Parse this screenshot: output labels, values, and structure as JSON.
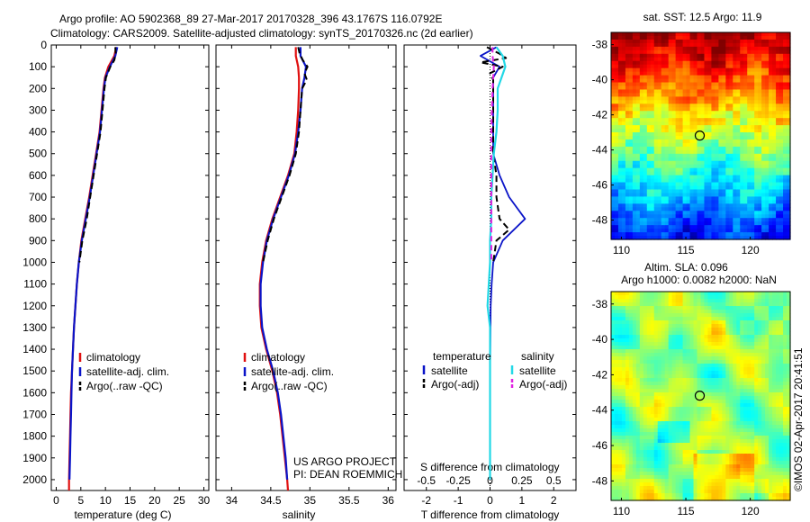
{
  "header": {
    "line1": "Argo profile: AO 5902368_89 27-Mar-2017 20170328_396 43.1767S 116.0792E",
    "line2": "Climatology: CARS2009. Satellite-adjusted climatology: synTS_20170326.nc (2d earlier)"
  },
  "colors": {
    "climatology": "#e01010",
    "satellite": "#0a14c8",
    "argo": "#000000",
    "salinity_satellite": "#22d8e6",
    "salinity_argo": "#e020e0"
  },
  "chart_data": [
    {
      "type": "line",
      "xlabel": "temperature (deg C)",
      "ylabel": "",
      "ylim": [
        2050,
        0
      ],
      "xlim": [
        -1,
        31
      ],
      "xticks": [
        0,
        5,
        10,
        15,
        20,
        25,
        30
      ],
      "yticks": [
        0,
        100,
        200,
        300,
        400,
        500,
        600,
        700,
        800,
        900,
        1000,
        1100,
        1200,
        1300,
        1400,
        1500,
        1600,
        1700,
        1800,
        1900,
        2000
      ],
      "legend": [
        "climatology",
        "satellite-adj. clim.",
        "Argo(..raw -QC)"
      ],
      "legend_position": "lower-right",
      "series": [
        {
          "name": "climatology",
          "y": [
            10,
            50,
            100,
            150,
            200,
            300,
            400,
            500,
            600,
            700,
            800,
            900,
            1000,
            1100,
            1200,
            1300,
            1400,
            1500,
            1600,
            1700,
            1800,
            1900,
            2000,
            2050
          ],
          "x": [
            12.2,
            11.8,
            10.6,
            9.9,
            9.6,
            9.2,
            8.8,
            8.1,
            7.4,
            6.7,
            5.9,
            5.1,
            4.6,
            4.2,
            3.9,
            3.6,
            3.4,
            3.2,
            3.0,
            2.9,
            2.8,
            2.7,
            2.6,
            2.6
          ]
        },
        {
          "name": "satellite-adj. clim.",
          "y": [
            10,
            50,
            100,
            150,
            200,
            300,
            400,
            500,
            600,
            700,
            800,
            900,
            1000,
            1100,
            1200,
            1300,
            1400,
            1500,
            1600,
            1700,
            1800,
            1900,
            2000
          ],
          "x": [
            12.4,
            12.0,
            10.9,
            10.0,
            9.7,
            9.3,
            8.9,
            8.2,
            7.5,
            6.8,
            6.0,
            5.2,
            4.6,
            4.2,
            3.9,
            3.6,
            3.4,
            3.2,
            3.1,
            3.0,
            2.9,
            2.8,
            2.7
          ]
        },
        {
          "name": "Argo(..raw -QC)",
          "y": [
            10,
            40,
            70,
            100,
            150,
            200,
            300,
            400,
            500,
            600,
            700,
            800,
            900,
            1000
          ],
          "x": [
            12.0,
            12.1,
            11.8,
            11.0,
            10.1,
            9.8,
            9.4,
            9.0,
            8.3,
            7.6,
            6.9,
            6.2,
            5.3,
            4.7
          ]
        }
      ]
    },
    {
      "type": "line",
      "xlabel": "salinity",
      "ylabel": "",
      "ylim": [
        2050,
        0
      ],
      "xlim": [
        33.8,
        36.1
      ],
      "xticks": [
        34,
        34.5,
        35,
        35.5,
        36
      ],
      "xticklabels": [
        "34",
        "34.5",
        "35",
        "35.5",
        "36"
      ],
      "legend": [
        "climatology",
        "satellite-adj. clim.",
        "Argo(..raw -QC)"
      ],
      "legend_position": "lower-right",
      "annotation": [
        "US ARGO PROJECT",
        "PI: DEAN ROEMMICH"
      ],
      "series": [
        {
          "name": "climatology",
          "y": [
            10,
            50,
            100,
            150,
            200,
            300,
            400,
            500,
            600,
            700,
            800,
            900,
            1000,
            1100,
            1200,
            1300,
            1400,
            1500,
            1600,
            1700,
            1800,
            1900,
            2000,
            2050
          ],
          "x": [
            34.82,
            34.82,
            34.85,
            34.86,
            34.86,
            34.85,
            34.83,
            34.8,
            34.72,
            34.62,
            34.52,
            34.44,
            34.39,
            34.36,
            34.36,
            34.38,
            34.44,
            34.52,
            34.58,
            34.62,
            34.65,
            34.68,
            34.71,
            34.72
          ]
        },
        {
          "name": "satellite-adj. clim.",
          "y": [
            10,
            50,
            100,
            150,
            200,
            300,
            400,
            500,
            600,
            700,
            800,
            900,
            1000,
            1100,
            1200,
            1300,
            1400,
            1500,
            1600,
            1700,
            1800,
            1900,
            2000
          ],
          "x": [
            34.88,
            34.88,
            34.95,
            34.93,
            34.9,
            34.88,
            34.85,
            34.81,
            34.73,
            34.63,
            34.53,
            34.45,
            34.4,
            34.37,
            34.37,
            34.39,
            34.45,
            34.53,
            34.59,
            34.63,
            34.66,
            34.69,
            34.71
          ]
        },
        {
          "name": "Argo(..raw -QC)",
          "y": [
            10,
            40,
            70,
            100,
            130,
            160,
            200,
            300,
            400,
            500,
            600,
            700,
            800,
            900,
            1000
          ],
          "x": [
            34.85,
            34.87,
            34.91,
            34.97,
            34.93,
            34.96,
            34.9,
            34.88,
            34.86,
            34.82,
            34.74,
            34.64,
            34.54,
            34.46,
            34.4
          ]
        }
      ]
    },
    {
      "type": "line",
      "title": "",
      "xlabel": "T difference from climatology",
      "secondary_xlabel": "S difference from climatology",
      "ylim": [
        2050,
        0
      ],
      "xlim": [
        -2.7,
        2.7
      ],
      "xticks": [
        -2,
        -1,
        0,
        1,
        2
      ],
      "secondary_xticks": [
        -0.5,
        -0.25,
        0,
        0.25,
        0.5
      ],
      "legend_groups": [
        {
          "title": "temperature",
          "entries": [
            "satellite",
            "Argo(-adj)"
          ]
        },
        {
          "title": "salinity",
          "entries": [
            "satellite",
            "Argo(-adj)"
          ]
        }
      ],
      "legend_position": "lower-center",
      "series": [
        {
          "name": "temperature satellite",
          "y": [
            10,
            50,
            100,
            150,
            200,
            300,
            400,
            500,
            600,
            700,
            800,
            900,
            1000,
            1100,
            1200,
            1500,
            2000
          ],
          "x": [
            0.2,
            -0.3,
            0.3,
            0.1,
            0.1,
            0.1,
            0.1,
            0.1,
            0.3,
            0.6,
            1.1,
            0.4,
            0.1,
            0.05,
            0.02,
            0.0,
            0.0
          ]
        },
        {
          "name": "temperature Argo(-adj)",
          "y": [
            10,
            40,
            60,
            80,
            100,
            130,
            160,
            200,
            300,
            400,
            500,
            600,
            700,
            800,
            850,
            900,
            1000
          ],
          "x": [
            -0.1,
            0.3,
            0.5,
            -0.3,
            0.4,
            0.0,
            0.1,
            0.1,
            0.1,
            0.1,
            0.1,
            0.2,
            0.2,
            0.3,
            0.6,
            0.2,
            0.1
          ]
        },
        {
          "name": "salinity satellite",
          "y": [
            10,
            50,
            100,
            200,
            300,
            400,
            500,
            600,
            700,
            800,
            900,
            1000,
            1100,
            1200,
            1300,
            1500,
            2000
          ],
          "x": [
            0.05,
            0.1,
            0.12,
            0.06,
            0.06,
            0.05,
            0.03,
            0.02,
            0.01,
            0.01,
            0.0,
            0.0,
            -0.01,
            -0.02,
            0.0,
            0.0,
            0.0
          ]
        },
        {
          "name": "salinity Argo(-adj)",
          "y": [
            10,
            50,
            100,
            200,
            400,
            600,
            800,
            1000
          ],
          "x": [
            0.02,
            0.02,
            0.03,
            0.02,
            0.01,
            0.01,
            0.01,
            0.01
          ]
        }
      ]
    }
  ],
  "maps": [
    {
      "title": "sat. SST: 12.5 Argo: 11.9",
      "yticks": [
        "-38",
        "-40",
        "-42",
        "-44",
        "-46",
        "-48"
      ],
      "xticks": [
        "110",
        "115",
        "120"
      ],
      "marker_lon": 116.08,
      "marker_lat": -43.18,
      "variable": "sea surface temperature"
    },
    {
      "title_line1": "Altim. SLA: 0.096",
      "title_line2": "Argo h1000: 0.0082 h2000: NaN",
      "yticks": [
        "-38",
        "-40",
        "-42",
        "-44",
        "-46",
        "-48"
      ],
      "xticks": [
        "110",
        "115",
        "120"
      ],
      "marker_lon": 116.08,
      "marker_lat": -43.18,
      "variable": "sea level anomaly"
    }
  ],
  "footer_stamp": "©IMOS 02-Apr-2017 20:41:51"
}
